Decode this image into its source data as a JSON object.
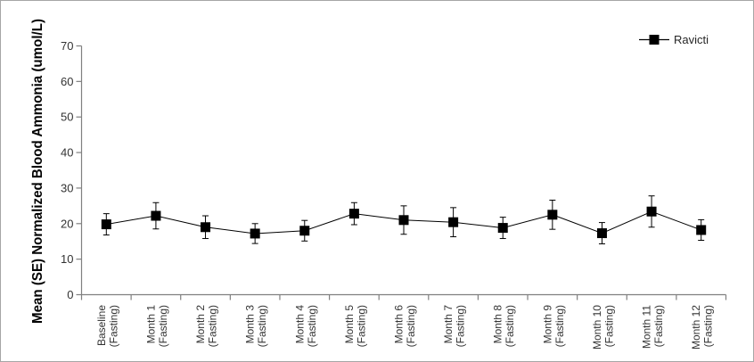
{
  "figure": {
    "background": "#ffffff",
    "border_color": "#a6a6a6"
  },
  "legend": {
    "label": "Ravicti"
  },
  "chart_data": {
    "type": "line",
    "title": "",
    "xlabel": "",
    "ylabel": "Mean (SE) Normalized Blood Ammonia (umol/L)",
    "ylim": [
      0,
      70
    ],
    "yticks": [
      0,
      10,
      20,
      30,
      40,
      50,
      60,
      70
    ],
    "grid": false,
    "legend_position": "top-right",
    "categories": [
      "Baseline",
      "Month 1",
      "Month 2",
      "Month 3",
      "Month 4",
      "Month 5",
      "Month 6",
      "Month 7",
      "Month 8",
      "Month 9",
      "Month 10",
      "Month 11",
      "Month 12"
    ],
    "category_sublabel": "(Fasting)",
    "series": [
      {
        "name": "Ravicti",
        "marker": "filled-square",
        "color": "#000000",
        "values": [
          19.8,
          22.2,
          19.0,
          17.2,
          18.0,
          22.8,
          21.0,
          20.4,
          18.8,
          22.5,
          17.3,
          23.4,
          18.2
        ],
        "se": [
          3.0,
          3.7,
          3.2,
          2.8,
          2.9,
          3.1,
          4.0,
          4.1,
          3.0,
          4.1,
          3.0,
          4.4,
          2.9
        ]
      }
    ],
    "axis_color": "#808080",
    "tick_label_color": "#333333",
    "axis_title_color": "#000000"
  }
}
